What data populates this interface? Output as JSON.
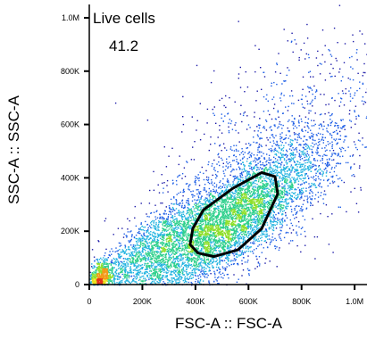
{
  "chart_data": {
    "type": "scatter",
    "subtype": "flow-cytometry-density-dot-plot",
    "xlabel": "FSC-A :: FSC-A",
    "ylabel": "SSC-A :: SSC-A",
    "xlim": [
      0,
      1050000
    ],
    "ylim": [
      0,
      1050000
    ],
    "x_ticks": [
      {
        "value": 0,
        "label": "0"
      },
      {
        "value": 200000,
        "label": "200K"
      },
      {
        "value": 400000,
        "label": "400K"
      },
      {
        "value": 600000,
        "label": "600K"
      },
      {
        "value": 800000,
        "label": "800K"
      },
      {
        "value": 1000000,
        "label": "1.0M"
      }
    ],
    "y_ticks": [
      {
        "value": 0,
        "label": "0"
      },
      {
        "value": 200000,
        "label": "200K"
      },
      {
        "value": 400000,
        "label": "400K"
      },
      {
        "value": 600000,
        "label": "600K"
      },
      {
        "value": 800000,
        "label": "800K"
      },
      {
        "value": 1000000,
        "label": "1.0M"
      }
    ],
    "grid": false,
    "colormap": [
      "#1c1aa8",
      "#1f5fe6",
      "#22b3e0",
      "#2ed08c",
      "#8fdf2c",
      "#ece21c",
      "#f39a18",
      "#e4341c"
    ],
    "populations": [
      {
        "center_x": 520000,
        "center_y": 230000,
        "spread_major": 230000,
        "spread_minor": 70000,
        "angle_deg": 38,
        "weight": 0.62
      },
      {
        "center_x": 230000,
        "center_y": 140000,
        "spread_major": 160000,
        "spread_minor": 50000,
        "angle_deg": 40,
        "weight": 0.18
      },
      {
        "center_x": 40000,
        "center_y": 25000,
        "spread_major": 35000,
        "spread_minor": 20000,
        "angle_deg": 70,
        "weight": 0.08
      },
      {
        "center_x": 700000,
        "center_y": 500000,
        "spread_major": 280000,
        "spread_minor": 140000,
        "angle_deg": 42,
        "weight": 0.12
      }
    ],
    "gate": {
      "name": "Live cells",
      "percent": "41.2",
      "color": "#000000",
      "polygon": [
        [
          380000,
          150000
        ],
        [
          410000,
          118000
        ],
        [
          470000,
          105000
        ],
        [
          560000,
          130000
        ],
        [
          650000,
          210000
        ],
        [
          710000,
          340000
        ],
        [
          700000,
          405000
        ],
        [
          650000,
          420000
        ],
        [
          540000,
          360000
        ],
        [
          430000,
          280000
        ],
        [
          390000,
          210000
        ]
      ]
    }
  }
}
